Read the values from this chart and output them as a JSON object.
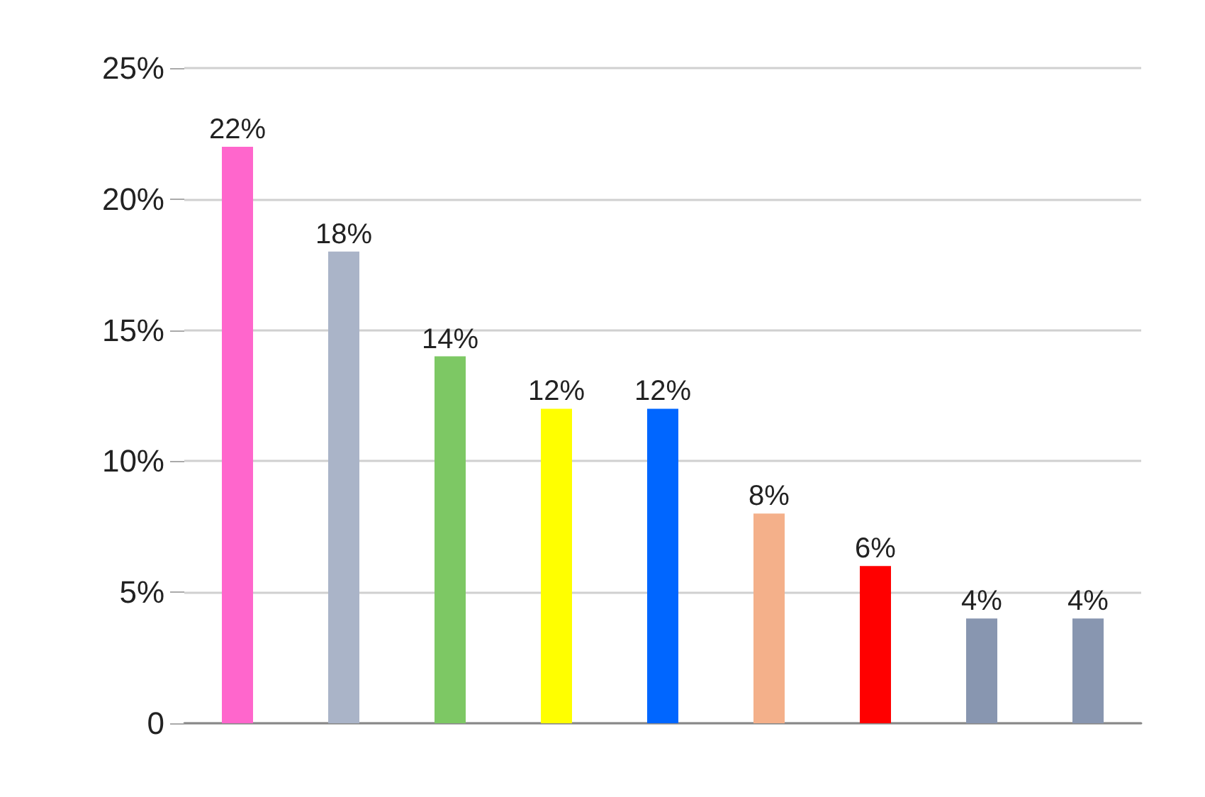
{
  "chart_data": {
    "type": "bar",
    "categories": [
      null,
      null,
      null,
      null,
      null,
      null,
      null,
      null,
      null
    ],
    "values": [
      22,
      18,
      14,
      12,
      12,
      8,
      6,
      4,
      4
    ],
    "colors": [
      "#ff66cc",
      "#aab4c8",
      "#7dc864",
      "#ffff00",
      "#0066ff",
      "#f4b08a",
      "#ff0000",
      "#8896b0",
      "#8896b0"
    ],
    "value_labels": [
      "22%",
      "18%",
      "14%",
      "12%",
      "12%",
      "8%",
      "6%",
      "4%",
      "4%"
    ],
    "ylim": [
      0,
      25
    ],
    "yticks": [
      0,
      {
        "value": 5,
        "label": "5%"
      },
      {
        "value": 10,
        "label": "10%"
      },
      {
        "value": 15,
        "label": "15%"
      },
      {
        "value": 20,
        "label": "20%"
      },
      {
        "value": 25,
        "label": "25%"
      }
    ],
    "grid": "y"
  }
}
